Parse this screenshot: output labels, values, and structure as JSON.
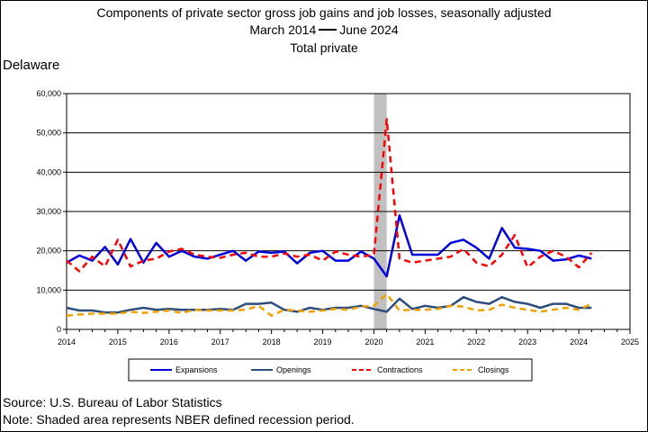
{
  "title_line1": "Components of private sector gross job gains and job losses, seasonally adjusted",
  "title_line2_start": "March 2014",
  "title_line2_end": "June 2024",
  "title_line3": "Total private",
  "region": "Delaware",
  "source": "Source: U.S. Bureau of Labor Statistics",
  "note": "Note: Shaded area represents NBER defined recession period.",
  "chart_data": {
    "type": "line",
    "xlim": [
      2014,
      2025
    ],
    "ylim": [
      0,
      60000
    ],
    "x_ticks": [
      "2014",
      "2015",
      "2016",
      "2017",
      "2018",
      "2019",
      "2020",
      "2021",
      "2022",
      "2023",
      "2024",
      "2025"
    ],
    "y_ticks": [
      "0",
      "10,000",
      "20,000",
      "30,000",
      "40,000",
      "50,000",
      "60,000"
    ],
    "grid": "horizontal",
    "legend_position": "bottom",
    "recession_shading": [
      2020.0,
      2020.25
    ],
    "x": [
      2014.0,
      2014.25,
      2014.5,
      2014.75,
      2015.0,
      2015.25,
      2015.5,
      2015.75,
      2016.0,
      2016.25,
      2016.5,
      2016.75,
      2017.0,
      2017.25,
      2017.5,
      2017.75,
      2018.0,
      2018.25,
      2018.5,
      2018.75,
      2019.0,
      2019.25,
      2019.5,
      2019.75,
      2020.0,
      2020.25,
      2020.5,
      2020.75,
      2021.0,
      2021.25,
      2021.5,
      2021.75,
      2022.0,
      2022.25,
      2022.5,
      2022.75,
      2023.0,
      2023.25,
      2023.5,
      2023.75,
      2024.0,
      2024.25
    ],
    "series": [
      {
        "name": "Expansions",
        "color": "#0000dd",
        "dash": "solid",
        "width": 2.5,
        "values": [
          17000,
          18800,
          17500,
          21000,
          16500,
          23000,
          17000,
          22000,
          18500,
          20000,
          18500,
          18000,
          19000,
          20000,
          17500,
          19800,
          19500,
          19800,
          16800,
          19500,
          20000,
          17500,
          17500,
          19800,
          18000,
          13500,
          29000,
          19000,
          19000,
          19000,
          22000,
          22800,
          20800,
          18000,
          25800,
          20800,
          20500,
          20000,
          17500,
          17800,
          18800,
          18000
        ]
      },
      {
        "name": "Openings",
        "color": "#2e4d7b",
        "dash": "solid",
        "width": 2.5,
        "values": [
          5500,
          4800,
          4800,
          4300,
          4300,
          5000,
          5500,
          5000,
          5200,
          5000,
          5000,
          5000,
          5200,
          5000,
          6500,
          6500,
          6800,
          5000,
          4500,
          5500,
          5000,
          5500,
          5500,
          6000,
          5200,
          4500,
          7800,
          5200,
          6000,
          5500,
          6000,
          8200,
          7000,
          6500,
          8200,
          7000,
          6500,
          5500,
          6500,
          6500,
          5500,
          5500
        ]
      },
      {
        "name": "Contractions",
        "color": "#ff0000",
        "dash": "dashed",
        "width": 2.5,
        "values": [
          17500,
          14800,
          18500,
          16000,
          22800,
          16000,
          17500,
          18000,
          19800,
          20500,
          19000,
          18500,
          18200,
          19000,
          19500,
          18500,
          18500,
          19300,
          18500,
          19000,
          17500,
          19800,
          19000,
          18500,
          19000,
          53500,
          18000,
          17000,
          17500,
          18000,
          18500,
          20500,
          17000,
          16000,
          19000,
          24000,
          15800,
          18500,
          20000,
          18500,
          15800,
          19500
        ]
      },
      {
        "name": "Closings",
        "color": "#f0a000",
        "dash": "dashed",
        "width": 2.5,
        "values": [
          3500,
          3800,
          4000,
          4000,
          4000,
          4500,
          4200,
          4500,
          4800,
          4200,
          5000,
          4800,
          4800,
          4800,
          5000,
          6000,
          3500,
          5000,
          4800,
          4500,
          4800,
          5200,
          5000,
          5800,
          6000,
          9000,
          4800,
          5000,
          5000,
          5200,
          6000,
          5800,
          4800,
          5000,
          6300,
          5500,
          5000,
          4500,
          5000,
          5500,
          5000,
          6500
        ]
      }
    ]
  }
}
